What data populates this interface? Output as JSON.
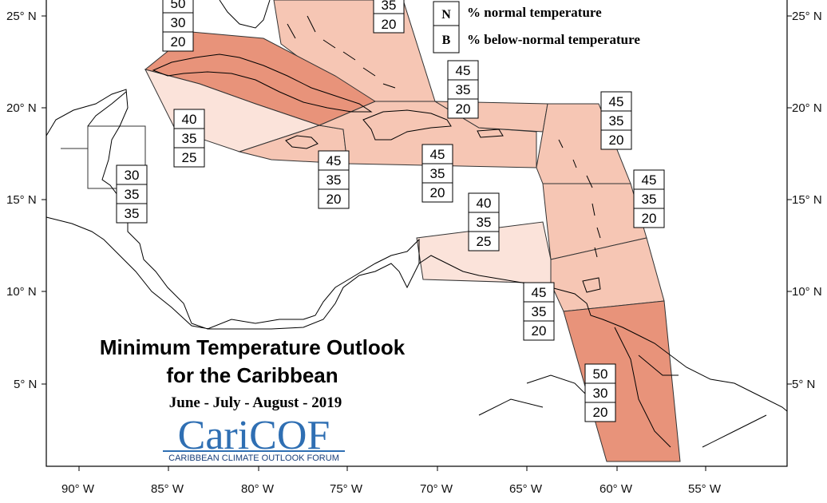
{
  "map": {
    "title_line1": "Minimum Temperature Outlook",
    "title_line2": "for the Caribbean",
    "period": "June - July - August - 2019",
    "logo": {
      "name": "CariCOF",
      "subtitle": "CARIBBEAN CLIMATE OUTLOOK FORUM",
      "color": "#2f6fb3"
    },
    "legend": [
      {
        "letter": "N",
        "text": "% normal temperature"
      },
      {
        "letter": "B",
        "text": "% below-normal temperature"
      }
    ],
    "lat_labels": [
      "25° N",
      "20° N",
      "15° N",
      "10° N",
      "5° N"
    ],
    "lon_labels": [
      "90° W",
      "85° W",
      "80° W",
      "75° W",
      "70° W",
      "65° W",
      "60° W",
      "55° W"
    ],
    "colors": {
      "prob_50": "#e8937a",
      "prob_45": "#f6c6b4",
      "prob_40": "#fbe3da",
      "land_outline": "#000000"
    },
    "regions": [
      {
        "id": "bahamas",
        "above": "",
        "normal": "35",
        "below": "20"
      },
      {
        "id": "western-cuba-north",
        "above": "50",
        "normal": "30",
        "below": "20"
      },
      {
        "id": "cayman-jamaica-west",
        "above": "40",
        "normal": "35",
        "below": "25"
      },
      {
        "id": "belize",
        "above": "30",
        "normal": "35",
        "below": "35"
      },
      {
        "id": "jamaica",
        "above": "45",
        "normal": "35",
        "below": "20"
      },
      {
        "id": "hispaniola",
        "above": "45",
        "normal": "35",
        "below": "20"
      },
      {
        "id": "turks-caicos",
        "above": "45",
        "normal": "35",
        "below": "20"
      },
      {
        "id": "leeward-islands",
        "above": "45",
        "normal": "35",
        "below": "20"
      },
      {
        "id": "windward-islands",
        "above": "45",
        "normal": "35",
        "below": "20"
      },
      {
        "id": "abc-islands",
        "above": "40",
        "normal": "35",
        "below": "25"
      },
      {
        "id": "trinidad-tobago",
        "above": "45",
        "normal": "35",
        "below": "20"
      },
      {
        "id": "guianas",
        "above": "50",
        "normal": "30",
        "below": "20"
      }
    ]
  }
}
